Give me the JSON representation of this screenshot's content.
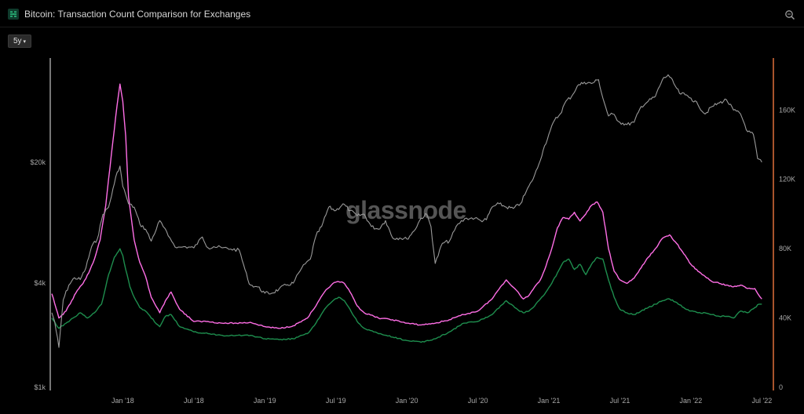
{
  "header": {
    "title": "Bitcoin: Transaction Count Comparison for Exchanges",
    "range_label": "5y",
    "range_caret": "▾"
  },
  "colors": {
    "background": "#000000",
    "price": "#9a9a9a",
    "series_pink": "#ff6ee6",
    "series_green": "#1e8e4e",
    "right_axis": "#e0703a",
    "left_axis": "#9e9e9e"
  },
  "icons": {
    "logo": "glassnode-logo-icon",
    "zoom": "zoom-icon"
  },
  "chart_data": {
    "type": "line",
    "watermark": "glassnode",
    "x_ticks": [
      "Jan '18",
      "Jul '18",
      "Jan '19",
      "Jul '19",
      "Jan '20",
      "Jul '20",
      "Jan '21",
      "Jul '21",
      "Jan '22",
      "Jul '22"
    ],
    "x_tick_times": [
      2018.0,
      2018.5,
      2019.0,
      2019.5,
      2020.0,
      2020.5,
      2021.0,
      2021.5,
      2022.0,
      2022.5
    ],
    "xlim": [
      2017.5,
      2022.57
    ],
    "y_left": {
      "scale": "log",
      "ticks": [
        1000,
        4000,
        20000
      ],
      "tick_labels": [
        "$1k",
        "$4k",
        "$20k"
      ],
      "ylim": [
        1000,
        80000
      ]
    },
    "y_right": {
      "scale": "linear",
      "ticks": [
        0,
        40000,
        80000,
        120000,
        160000
      ],
      "tick_labels": [
        "0",
        "40K",
        "80K",
        "120K",
        "160K"
      ],
      "ylim": [
        0,
        190000
      ]
    },
    "grid": false,
    "legend": "none",
    "series": [
      {
        "axis": "left",
        "x": [
          2017.5,
          2017.52,
          2017.55,
          2017.58,
          2017.62,
          2017.66,
          2017.7,
          2017.74,
          2017.78,
          2017.82,
          2017.86,
          2017.9,
          2017.94,
          2017.96,
          2017.98,
          2018.0,
          2018.02,
          2018.04,
          2018.08,
          2018.12,
          2018.16,
          2018.2,
          2018.26,
          2018.32,
          2018.38,
          2018.44,
          2018.5,
          2018.56,
          2018.6,
          2018.64,
          2018.7,
          2018.76,
          2018.82,
          2018.86,
          2018.88,
          2018.9,
          2018.95,
          2019.0,
          2019.05,
          2019.1,
          2019.15,
          2019.2,
          2019.26,
          2019.32,
          2019.36,
          2019.4,
          2019.45,
          2019.5,
          2019.55,
          2019.6,
          2019.65,
          2019.7,
          2019.75,
          2019.8,
          2019.85,
          2019.9,
          2019.95,
          2020.0,
          2020.05,
          2020.1,
          2020.14,
          2020.17,
          2020.2,
          2020.25,
          2020.3,
          2020.36,
          2020.42,
          2020.48,
          2020.52,
          2020.56,
          2020.6,
          2020.65,
          2020.7,
          2020.75,
          2020.8,
          2020.84,
          2020.88,
          2020.92,
          2020.96,
          2021.0,
          2021.04,
          2021.08,
          2021.12,
          2021.16,
          2021.2,
          2021.25,
          2021.3,
          2021.35,
          2021.38,
          2021.42,
          2021.45,
          2021.5,
          2021.55,
          2021.6,
          2021.65,
          2021.7,
          2021.75,
          2021.8,
          2021.84,
          2021.88,
          2021.92,
          2021.96,
          2022.0,
          2022.05,
          2022.1,
          2022.15,
          2022.2,
          2022.25,
          2022.3,
          2022.35,
          2022.4,
          2022.44,
          2022.47,
          2022.5
        ],
        "y": [
          2700,
          2400,
          1700,
          3200,
          3900,
          4300,
          4200,
          4900,
          6500,
          7200,
          10000,
          11000,
          15000,
          17500,
          19000,
          14500,
          13000,
          11500,
          11000,
          8800,
          8200,
          7000,
          9200,
          7500,
          6400,
          6500,
          6400,
          7400,
          6400,
          6500,
          6400,
          6300,
          6200,
          4800,
          4200,
          3900,
          3800,
          3500,
          3500,
          3700,
          3900,
          4000,
          4900,
          5500,
          7500,
          8500,
          11000,
          10500,
          11500,
          10500,
          9800,
          10000,
          8500,
          8200,
          9200,
          7300,
          7300,
          7200,
          8000,
          9500,
          10000,
          8500,
          5200,
          6800,
          7000,
          8800,
          9500,
          9500,
          9200,
          9300,
          11000,
          11500,
          11000,
          10800,
          11500,
          13500,
          15500,
          18500,
          23500,
          29000,
          35000,
          38000,
          45000,
          48000,
          55000,
          58000,
          57000,
          60000,
          47000,
          37000,
          38000,
          34000,
          33000,
          34000,
          42000,
          45000,
          48000,
          60000,
          64000,
          57000,
          50000,
          49000,
          47000,
          43000,
          38000,
          42000,
          44000,
          46000,
          40000,
          38000,
          30000,
          29000,
          21000,
          20000
        ]
      },
      {
        "axis": "right",
        "x": [
          2017.5,
          2017.55,
          2017.6,
          2017.64,
          2017.68,
          2017.72,
          2017.76,
          2017.8,
          2017.84,
          2017.88,
          2017.92,
          2017.96,
          2017.98,
          2018.0,
          2018.02,
          2018.04,
          2018.08,
          2018.12,
          2018.16,
          2018.2,
          2018.26,
          2018.3,
          2018.34,
          2018.4,
          2018.5,
          2018.6,
          2018.7,
          2018.8,
          2018.9,
          2019.0,
          2019.1,
          2019.2,
          2019.3,
          2019.36,
          2019.42,
          2019.48,
          2019.52,
          2019.56,
          2019.6,
          2019.65,
          2019.7,
          2019.8,
          2019.9,
          2020.0,
          2020.1,
          2020.2,
          2020.3,
          2020.4,
          2020.5,
          2020.6,
          2020.66,
          2020.7,
          2020.76,
          2020.82,
          2020.86,
          2020.9,
          2020.94,
          2020.98,
          2021.02,
          2021.06,
          2021.1,
          2021.14,
          2021.18,
          2021.22,
          2021.26,
          2021.3,
          2021.34,
          2021.38,
          2021.42,
          2021.46,
          2021.5,
          2021.55,
          2021.6,
          2021.65,
          2021.7,
          2021.75,
          2021.8,
          2021.85,
          2021.9,
          2021.95,
          2022.0,
          2022.05,
          2022.1,
          2022.15,
          2022.2,
          2022.25,
          2022.3,
          2022.35,
          2022.4,
          2022.45,
          2022.48,
          2022.5
        ],
        "y": [
          54000,
          40000,
          44000,
          50000,
          56000,
          60000,
          66000,
          74000,
          85000,
          105000,
          135000,
          163000,
          175000,
          165000,
          145000,
          110000,
          85000,
          72000,
          64000,
          52000,
          43000,
          50000,
          55000,
          45000,
          38000,
          38000,
          37000,
          37000,
          37500,
          35000,
          34000,
          35500,
          40000,
          47000,
          55000,
          60000,
          61000,
          60000,
          55000,
          47000,
          43000,
          40000,
          39000,
          37000,
          36000,
          37000,
          39000,
          42000,
          44000,
          51000,
          58000,
          62000,
          57000,
          51000,
          53000,
          58000,
          62000,
          70000,
          80000,
          92000,
          98000,
          97000,
          101000,
          96000,
          100000,
          105000,
          107000,
          101000,
          80000,
          67000,
          62000,
          60000,
          63000,
          69000,
          75000,
          80000,
          86000,
          88000,
          83000,
          77000,
          71000,
          67000,
          64000,
          61000,
          60000,
          59000,
          58000,
          59000,
          57000,
          57000,
          53000,
          51000
        ]
      },
      {
        "axis": "right",
        "x": [
          2017.5,
          2017.55,
          2017.6,
          2017.65,
          2017.7,
          2017.75,
          2017.8,
          2017.85,
          2017.9,
          2017.94,
          2017.98,
          2018.0,
          2018.02,
          2018.05,
          2018.08,
          2018.12,
          2018.16,
          2018.2,
          2018.26,
          2018.3,
          2018.34,
          2018.4,
          2018.5,
          2018.6,
          2018.7,
          2018.8,
          2018.9,
          2019.0,
          2019.1,
          2019.2,
          2019.3,
          2019.36,
          2019.42,
          2019.48,
          2019.52,
          2019.56,
          2019.6,
          2019.65,
          2019.7,
          2019.8,
          2019.9,
          2020.0,
          2020.1,
          2020.2,
          2020.3,
          2020.4,
          2020.5,
          2020.6,
          2020.66,
          2020.7,
          2020.76,
          2020.82,
          2020.86,
          2020.9,
          2020.94,
          2020.98,
          2021.02,
          2021.06,
          2021.1,
          2021.14,
          2021.18,
          2021.22,
          2021.26,
          2021.3,
          2021.34,
          2021.38,
          2021.42,
          2021.46,
          2021.5,
          2021.55,
          2021.6,
          2021.65,
          2021.7,
          2021.75,
          2021.8,
          2021.85,
          2021.9,
          2021.95,
          2022.0,
          2022.05,
          2022.1,
          2022.15,
          2022.2,
          2022.25,
          2022.3,
          2022.35,
          2022.4,
          2022.45,
          2022.48,
          2022.5
        ],
        "y": [
          40000,
          34000,
          37000,
          40000,
          43000,
          40000,
          43000,
          48000,
          65000,
          75000,
          80000,
          76000,
          68000,
          58000,
          52000,
          46000,
          44000,
          40000,
          35000,
          41000,
          42000,
          35000,
          32000,
          31000,
          30000,
          30000,
          30000,
          28000,
          27500,
          28000,
          31000,
          37000,
          45000,
          50000,
          52000,
          50000,
          45000,
          38000,
          34000,
          31000,
          29000,
          27000,
          26000,
          28000,
          32000,
          37000,
          38000,
          42000,
          47000,
          50000,
          46000,
          43000,
          44000,
          47000,
          51000,
          55000,
          60000,
          66000,
          72000,
          74000,
          68000,
          71000,
          65000,
          71000,
          75000,
          74000,
          62000,
          52000,
          45000,
          43000,
          42000,
          44000,
          46000,
          48000,
          50000,
          51000,
          49000,
          46000,
          44000,
          43000,
          43000,
          42000,
          41000,
          41000,
          40000,
          44000,
          43000,
          46000,
          48000,
          48000
        ]
      }
    ]
  }
}
